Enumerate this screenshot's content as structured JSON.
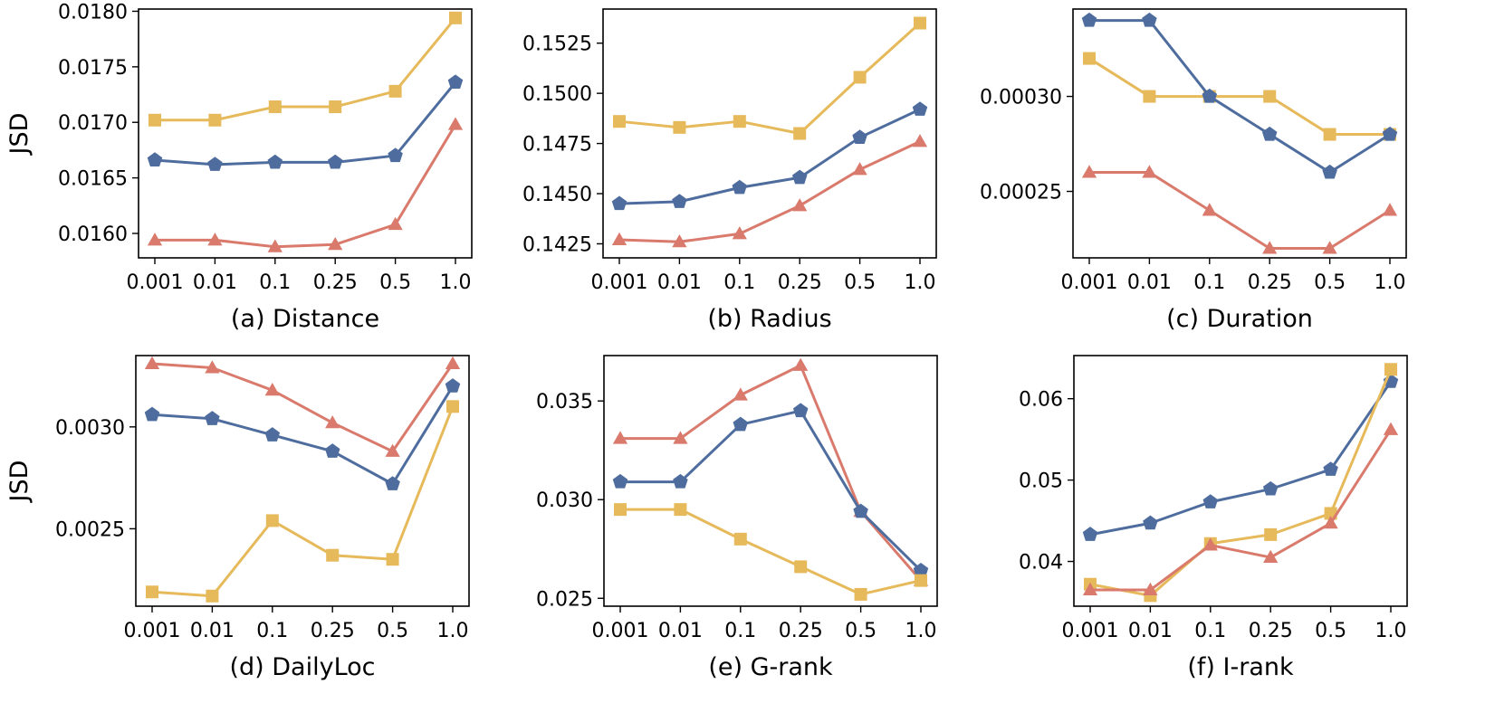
{
  "colors": {
    "blue": "#4e6d9e",
    "red": "#d97a6c",
    "gold": "#e6b95a"
  },
  "chart_data": [
    {
      "type": "line",
      "xlabel": "(a) Distance",
      "ylabel": "JSD",
      "categories": [
        "0.001",
        "0.01",
        "0.1",
        "0.25",
        "0.5",
        "1.0"
      ],
      "ylim": [
        0.01578,
        0.01802
      ],
      "yticks": [
        0.016,
        0.0165,
        0.017,
        0.0175,
        0.018
      ],
      "ytick_labels": [
        "0.0160",
        "0.0165",
        "0.0170",
        "0.0175",
        "0.0180"
      ],
      "series": [
        {
          "color": "gold",
          "marker": "square",
          "values": [
            0.01702,
            0.01702,
            0.01714,
            0.01714,
            0.01728,
            0.01794
          ]
        },
        {
          "color": "blue",
          "marker": "pentagon",
          "values": [
            0.01666,
            0.01662,
            0.01664,
            0.01664,
            0.0167,
            0.01736
          ]
        },
        {
          "color": "red",
          "marker": "triangle",
          "values": [
            0.01594,
            0.01594,
            0.01588,
            0.0159,
            0.01608,
            0.01698
          ]
        }
      ]
    },
    {
      "type": "line",
      "xlabel": "(b) Radius",
      "ylabel": "",
      "categories": [
        "0.001",
        "0.01",
        "0.1",
        "0.25",
        "0.5",
        "1.0"
      ],
      "ylim": [
        0.1418,
        0.1542
      ],
      "yticks": [
        0.1425,
        0.145,
        0.1475,
        0.15,
        0.1525
      ],
      "ytick_labels": [
        "0.1425",
        "0.1450",
        "0.1475",
        "0.1500",
        "0.1525"
      ],
      "series": [
        {
          "color": "gold",
          "marker": "square",
          "values": [
            0.1486,
            0.1483,
            0.1486,
            0.148,
            0.1508,
            0.1535
          ]
        },
        {
          "color": "blue",
          "marker": "pentagon",
          "values": [
            0.1445,
            0.1446,
            0.1453,
            0.1458,
            0.1478,
            0.1492
          ]
        },
        {
          "color": "red",
          "marker": "triangle",
          "values": [
            0.1427,
            0.1426,
            0.143,
            0.1444,
            0.1462,
            0.1476
          ]
        }
      ]
    },
    {
      "type": "line",
      "xlabel": "(c) Duration",
      "ylabel": "",
      "categories": [
        "0.001",
        "0.01",
        "0.1",
        "0.25",
        "0.5",
        "1.0"
      ],
      "ylim": [
        0.000215,
        0.000346
      ],
      "yticks": [
        0.00025,
        0.0003
      ],
      "ytick_labels": [
        "0.00025",
        "0.00030"
      ],
      "series": [
        {
          "color": "gold",
          "marker": "square",
          "values": [
            0.00032,
            0.0003,
            0.0003,
            0.0003,
            0.00028,
            0.00028
          ]
        },
        {
          "color": "blue",
          "marker": "pentagon",
          "values": [
            0.00034,
            0.00034,
            0.0003,
            0.00028,
            0.00026,
            0.00028
          ]
        },
        {
          "color": "red",
          "marker": "triangle",
          "values": [
            0.00026,
            0.00026,
            0.00024,
            0.00022,
            0.00022,
            0.00024
          ]
        }
      ]
    },
    {
      "type": "line",
      "xlabel": "(d) DailyLoc",
      "ylabel": "JSD",
      "categories": [
        "0.001",
        "0.01",
        "0.1",
        "0.25",
        "0.5",
        "1.0"
      ],
      "ylim": [
        0.00212,
        0.00335
      ],
      "yticks": [
        0.0025,
        0.003
      ],
      "ytick_labels": [
        "0.0025",
        "0.0030"
      ],
      "series": [
        {
          "color": "red",
          "marker": "triangle",
          "values": [
            0.00331,
            0.00329,
            0.00318,
            0.00302,
            0.00288,
            0.00331
          ]
        },
        {
          "color": "blue",
          "marker": "pentagon",
          "values": [
            0.00306,
            0.00304,
            0.00296,
            0.00288,
            0.00272,
            0.0032
          ]
        },
        {
          "color": "gold",
          "marker": "square",
          "values": [
            0.00219,
            0.00217,
            0.00254,
            0.00237,
            0.00235,
            0.0031
          ]
        }
      ]
    },
    {
      "type": "line",
      "xlabel": "(e) G-rank",
      "ylabel": "",
      "categories": [
        "0.001",
        "0.01",
        "0.1",
        "0.25",
        "0.5",
        "1.0"
      ],
      "ylim": [
        0.0246,
        0.0373
      ],
      "yticks": [
        0.025,
        0.03,
        0.035
      ],
      "ytick_labels": [
        "0.025",
        "0.030",
        "0.035"
      ],
      "series": [
        {
          "color": "red",
          "marker": "triangle",
          "values": [
            0.0331,
            0.0331,
            0.0353,
            0.0368,
            0.0294,
            0.0259
          ]
        },
        {
          "color": "blue",
          "marker": "pentagon",
          "values": [
            0.0309,
            0.0309,
            0.0338,
            0.0345,
            0.0294,
            0.0264
          ]
        },
        {
          "color": "gold",
          "marker": "square",
          "values": [
            0.0295,
            0.0295,
            0.028,
            0.0266,
            0.0252,
            0.0259
          ]
        }
      ]
    },
    {
      "type": "line",
      "xlabel": "(f) I-rank",
      "ylabel": "",
      "categories": [
        "0.001",
        "0.01",
        "0.1",
        "0.25",
        "0.5",
        "1.0"
      ],
      "ylim": [
        0.0345,
        0.0653
      ],
      "yticks": [
        0.04,
        0.05,
        0.06
      ],
      "ytick_labels": [
        "0.04",
        "0.05",
        "0.06"
      ],
      "series": [
        {
          "color": "blue",
          "marker": "pentagon",
          "values": [
            0.0433,
            0.0447,
            0.0473,
            0.0489,
            0.0513,
            0.0621
          ]
        },
        {
          "color": "gold",
          "marker": "square",
          "values": [
            0.0372,
            0.0358,
            0.0422,
            0.0433,
            0.0459,
            0.0636
          ]
        },
        {
          "color": "red",
          "marker": "triangle",
          "values": [
            0.0365,
            0.0365,
            0.042,
            0.0405,
            0.0447,
            0.0562
          ]
        }
      ]
    }
  ]
}
